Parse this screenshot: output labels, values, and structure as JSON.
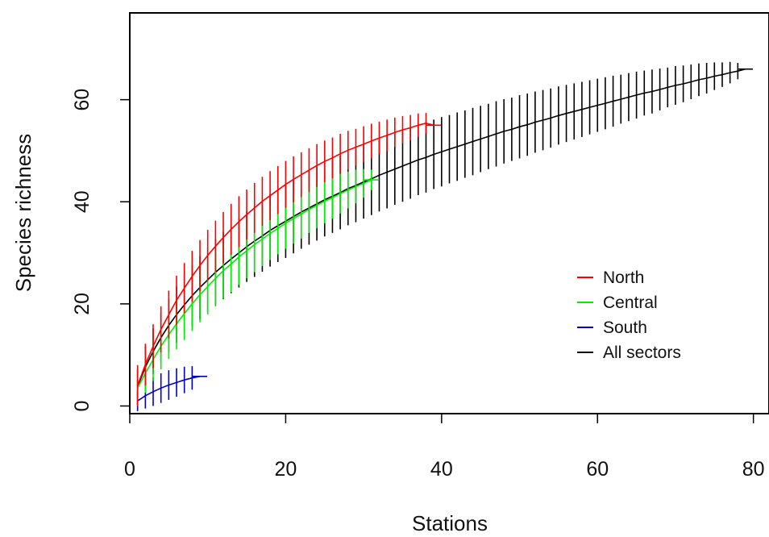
{
  "chart_data": {
    "type": "line",
    "title": "",
    "xlabel": "Stations",
    "ylabel": "Species richness",
    "xlim": [
      0,
      82
    ],
    "ylim": [
      -1.5,
      77
    ],
    "xticks": [
      {
        "value": 0,
        "label": "0"
      },
      {
        "value": 20,
        "label": "20"
      },
      {
        "value": 40,
        "label": "40"
      },
      {
        "value": 60,
        "label": "60"
      },
      {
        "value": 80,
        "label": "80"
      }
    ],
    "yticks": [
      {
        "value": 0,
        "label": "0"
      },
      {
        "value": 20,
        "label": "20"
      },
      {
        "value": 40,
        "label": "40"
      },
      {
        "value": 60,
        "label": "60"
      }
    ],
    "grid": false,
    "legend": {
      "position": "right"
    },
    "series": [
      {
        "name": "North",
        "color": "#ff0000",
        "x": [
          1,
          2,
          3,
          4,
          5,
          6,
          7,
          8,
          9,
          10,
          11,
          12,
          13,
          14,
          15,
          16,
          17,
          18,
          19,
          20,
          21,
          22,
          23,
          24,
          25,
          26,
          27,
          28,
          29,
          30,
          31,
          32,
          33,
          34,
          35,
          36,
          37,
          38,
          39
        ],
        "y": [
          4.0,
          8.1,
          11.7,
          15.0,
          17.9,
          20.7,
          23.1,
          25.4,
          27.5,
          29.5,
          31.3,
          33.0,
          34.6,
          36.1,
          37.5,
          38.8,
          40.1,
          41.2,
          42.3,
          43.4,
          44.4,
          45.3,
          46.2,
          47.1,
          47.9,
          48.6,
          49.4,
          50.1,
          50.7,
          51.3,
          51.9,
          52.5,
          53.0,
          53.6,
          54.1,
          54.5,
          55.0,
          55.4,
          55.0
        ],
        "ci": [
          4.0,
          4.1,
          4.3,
          4.5,
          4.7,
          4.8,
          4.9,
          5.0,
          5.0,
          5.0,
          5.0,
          5.0,
          5.0,
          5.0,
          4.9,
          4.9,
          4.8,
          4.8,
          4.7,
          4.6,
          4.5,
          4.4,
          4.3,
          4.2,
          4.1,
          4.0,
          3.9,
          3.8,
          3.6,
          3.5,
          3.4,
          3.2,
          3.1,
          2.9,
          2.7,
          2.5,
          2.3,
          2.0,
          0
        ]
      },
      {
        "name": "Central",
        "color": "#00ee00",
        "x": [
          1,
          2,
          3,
          4,
          5,
          6,
          7,
          8,
          9,
          10,
          11,
          12,
          13,
          14,
          15,
          16,
          17,
          18,
          19,
          20,
          21,
          22,
          23,
          24,
          25,
          26,
          27,
          28,
          29,
          30,
          31
        ],
        "y": [
          3.5,
          6.4,
          9.1,
          11.7,
          14.0,
          16.1,
          18.1,
          20.0,
          21.8,
          23.4,
          25.0,
          26.5,
          27.8,
          29.2,
          30.4,
          31.6,
          32.7,
          33.8,
          34.8,
          35.8,
          36.7,
          37.6,
          38.5,
          39.3,
          40.1,
          40.8,
          41.6,
          42.3,
          43.0,
          43.6,
          44.3
        ],
        "ci": [
          3.3,
          3.8,
          4.2,
          4.5,
          4.8,
          5.0,
          5.2,
          5.3,
          5.4,
          5.5,
          5.5,
          5.5,
          5.5,
          5.5,
          5.4,
          5.4,
          5.3,
          5.2,
          5.1,
          5.0,
          4.9,
          4.8,
          4.6,
          4.5,
          4.3,
          4.1,
          3.9,
          3.6,
          3.3,
          2.8,
          2.0
        ]
      },
      {
        "name": "South",
        "color": "#0000cc",
        "x": [
          1,
          2,
          3,
          4,
          5,
          6,
          7,
          8,
          9
        ],
        "y": [
          1.0,
          2.0,
          2.8,
          3.5,
          4.1,
          4.6,
          5.1,
          5.5,
          5.8
        ],
        "ci": [
          2.0,
          2.5,
          2.8,
          2.9,
          2.9,
          2.8,
          2.6,
          2.3,
          0
        ]
      },
      {
        "name": "All sectors",
        "color": "#000000",
        "x": [
          1,
          2,
          3,
          4,
          5,
          6,
          7,
          8,
          9,
          10,
          11,
          12,
          13,
          14,
          15,
          16,
          17,
          18,
          19,
          20,
          21,
          22,
          23,
          24,
          25,
          26,
          27,
          28,
          29,
          30,
          31,
          32,
          33,
          34,
          35,
          36,
          37,
          38,
          39,
          40,
          41,
          42,
          43,
          44,
          45,
          46,
          47,
          48,
          49,
          50,
          51,
          52,
          53,
          54,
          55,
          56,
          57,
          58,
          59,
          60,
          61,
          62,
          63,
          64,
          65,
          66,
          67,
          68,
          69,
          70,
          71,
          72,
          73,
          74,
          75,
          76,
          77,
          78,
          79
        ],
        "y": [
          3.8,
          7.6,
          10.7,
          13.4,
          15.8,
          17.9,
          19.8,
          21.6,
          23.2,
          24.7,
          26.2,
          27.5,
          28.8,
          30.0,
          31.2,
          32.3,
          33.3,
          34.4,
          35.3,
          36.2,
          37.1,
          38.0,
          38.8,
          39.6,
          40.4,
          41.1,
          41.8,
          42.6,
          43.2,
          43.9,
          44.5,
          45.2,
          45.8,
          46.4,
          47.0,
          47.6,
          48.2,
          48.7,
          49.3,
          49.8,
          50.3,
          50.8,
          51.3,
          51.8,
          52.3,
          52.8,
          53.3,
          53.8,
          54.2,
          54.7,
          55.1,
          55.6,
          56.0,
          56.4,
          56.9,
          57.3,
          57.7,
          58.1,
          58.5,
          58.9,
          59.3,
          59.7,
          60.1,
          60.5,
          60.9,
          61.3,
          61.6,
          62.0,
          62.4,
          62.8,
          63.1,
          63.5,
          63.9,
          64.2,
          64.6,
          64.9,
          65.3,
          65.6,
          66.0
        ],
        "ci": [
          3.5,
          4.0,
          4.5,
          4.9,
          5.2,
          5.5,
          5.8,
          6.0,
          6.2,
          6.4,
          6.5,
          6.6,
          6.7,
          6.8,
          6.9,
          7.0,
          7.0,
          7.1,
          7.1,
          7.2,
          7.2,
          7.2,
          7.2,
          7.2,
          7.2,
          7.2,
          7.2,
          7.2,
          7.2,
          7.2,
          7.1,
          7.1,
          7.1,
          7.0,
          7.0,
          7.0,
          6.9,
          6.9,
          6.8,
          6.8,
          6.7,
          6.7,
          6.6,
          6.6,
          6.5,
          6.4,
          6.4,
          6.3,
          6.2,
          6.2,
          6.1,
          6.0,
          5.9,
          5.8,
          5.7,
          5.6,
          5.5,
          5.4,
          5.3,
          5.2,
          5.1,
          5.0,
          4.8,
          4.7,
          4.6,
          4.4,
          4.3,
          4.1,
          3.9,
          3.8,
          3.6,
          3.4,
          3.2,
          3.0,
          2.7,
          2.4,
          2.1,
          1.6,
          0
        ]
      }
    ]
  }
}
